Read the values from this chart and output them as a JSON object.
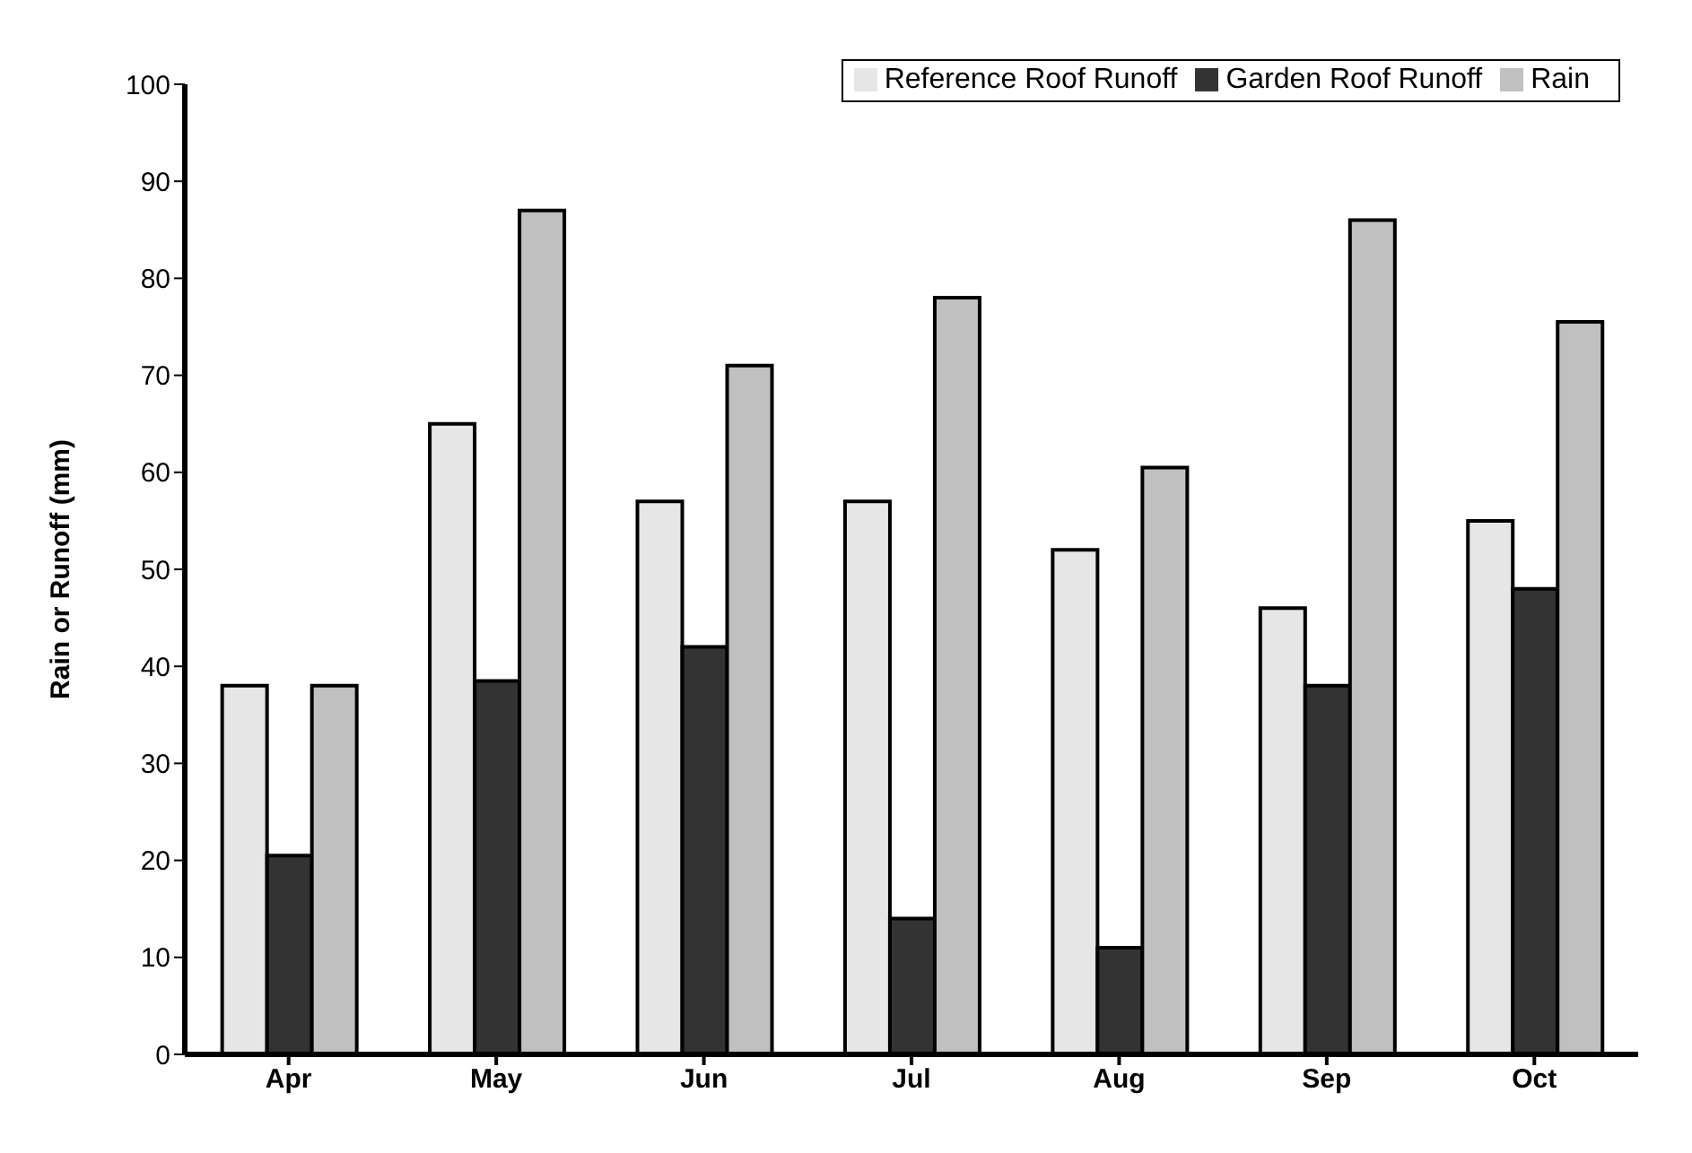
{
  "chart_data": {
    "type": "bar",
    "ylabel": "Rain or Runoff (mm)",
    "categories": [
      "Apr",
      "May",
      "Jun",
      "Jul",
      "Aug",
      "Sep",
      "Oct"
    ],
    "series": [
      {
        "name": "Reference Roof Runoff",
        "color": "#e6e6e6",
        "values": [
          38,
          65,
          57,
          57,
          52,
          46,
          55
        ]
      },
      {
        "name": "Garden Roof Runoff",
        "color": "#333333",
        "values": [
          20.5,
          38.5,
          42,
          14,
          11,
          38,
          48
        ]
      },
      {
        "name": "Rain",
        "color": "#c0c0c0",
        "values": [
          38,
          87,
          71,
          78,
          60.5,
          86,
          75.5
        ]
      }
    ],
    "ylim": [
      0,
      100
    ],
    "yticks": [
      0,
      10,
      20,
      30,
      40,
      50,
      60,
      70,
      80,
      90,
      100
    ],
    "grid": false,
    "legend": "top right"
  }
}
